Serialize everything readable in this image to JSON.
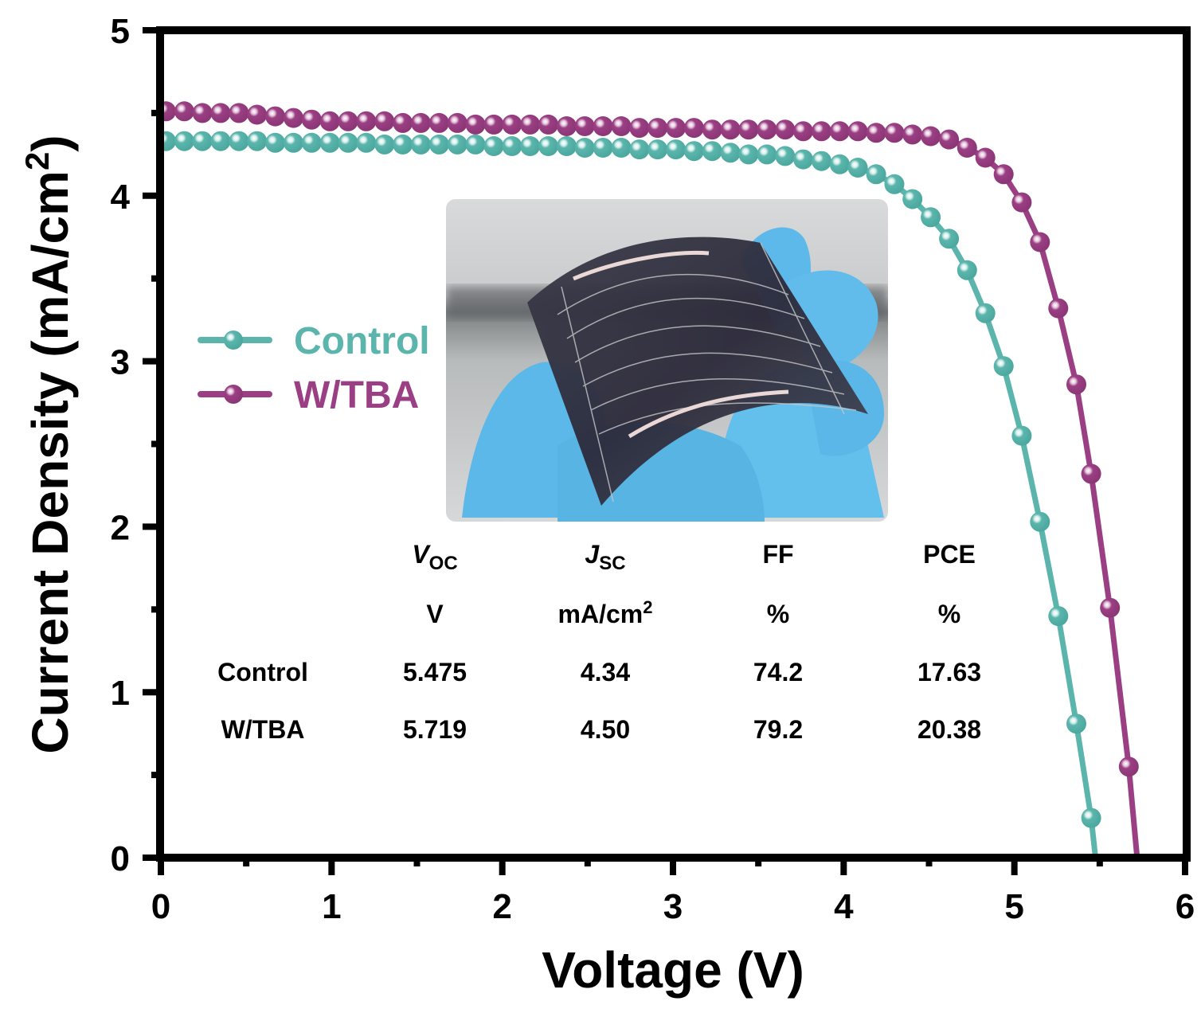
{
  "chart_data": {
    "type": "line",
    "title": "",
    "xlabel": "Voltage (V)",
    "ylabel_main": "Current Density (mA/cm",
    "ylabel_sup": "2",
    "ylabel_close": ")",
    "xlim": [
      0,
      6
    ],
    "ylim": [
      0,
      5
    ],
    "x_ticks": [
      0,
      1,
      2,
      3,
      4,
      5,
      6
    ],
    "y_ticks": [
      0,
      1,
      2,
      3,
      4,
      5
    ],
    "x_tick_labels": [
      "0",
      "1",
      "2",
      "3",
      "4",
      "5",
      "6"
    ],
    "y_tick_labels": [
      "0",
      "1",
      "2",
      "3",
      "4",
      "5"
    ],
    "grid": false,
    "legend_position": "center-left",
    "series": [
      {
        "name": "Control",
        "color": "#5BB5AC",
        "marker": "sphere",
        "points": [
          [
            0.03,
            4.33
          ],
          [
            0.137,
            4.33
          ],
          [
            0.243,
            4.33
          ],
          [
            0.35,
            4.33
          ],
          [
            0.457,
            4.33
          ],
          [
            0.563,
            4.33
          ],
          [
            0.67,
            4.32
          ],
          [
            0.777,
            4.32
          ],
          [
            0.883,
            4.32
          ],
          [
            0.99,
            4.32
          ],
          [
            1.097,
            4.32
          ],
          [
            1.203,
            4.32
          ],
          [
            1.31,
            4.31
          ],
          [
            1.417,
            4.31
          ],
          [
            1.523,
            4.31
          ],
          [
            1.63,
            4.31
          ],
          [
            1.737,
            4.31
          ],
          [
            1.843,
            4.31
          ],
          [
            1.95,
            4.3
          ],
          [
            2.057,
            4.3
          ],
          [
            2.163,
            4.3
          ],
          [
            2.27,
            4.3
          ],
          [
            2.377,
            4.3
          ],
          [
            2.483,
            4.29
          ],
          [
            2.59,
            4.29
          ],
          [
            2.697,
            4.29
          ],
          [
            2.803,
            4.28
          ],
          [
            2.91,
            4.28
          ],
          [
            3.017,
            4.28
          ],
          [
            3.123,
            4.27
          ],
          [
            3.23,
            4.27
          ],
          [
            3.337,
            4.26
          ],
          [
            3.443,
            4.25
          ],
          [
            3.55,
            4.25
          ],
          [
            3.657,
            4.24
          ],
          [
            3.763,
            4.22
          ],
          [
            3.87,
            4.21
          ],
          [
            3.977,
            4.19
          ],
          [
            4.083,
            4.17
          ],
          [
            4.19,
            4.13
          ],
          [
            4.297,
            4.07
          ],
          [
            4.403,
            3.98
          ],
          [
            4.51,
            3.87
          ],
          [
            4.617,
            3.74
          ],
          [
            4.723,
            3.55
          ],
          [
            4.83,
            3.29
          ],
          [
            4.937,
            2.97
          ],
          [
            5.043,
            2.55
          ],
          [
            5.15,
            2.03
          ],
          [
            5.257,
            1.46
          ],
          [
            5.363,
            0.81
          ],
          [
            5.45,
            0.24
          ]
        ],
        "line_end": [
          5.475,
          0
        ]
      },
      {
        "name": "W/TBA",
        "color": "#9A3F83",
        "marker": "sphere",
        "points": [
          [
            0.03,
            4.51
          ],
          [
            0.137,
            4.51
          ],
          [
            0.243,
            4.5
          ],
          [
            0.35,
            4.5
          ],
          [
            0.457,
            4.5
          ],
          [
            0.563,
            4.49
          ],
          [
            0.67,
            4.48
          ],
          [
            0.777,
            4.47
          ],
          [
            0.883,
            4.46
          ],
          [
            0.99,
            4.45
          ],
          [
            1.097,
            4.45
          ],
          [
            1.203,
            4.45
          ],
          [
            1.31,
            4.45
          ],
          [
            1.417,
            4.44
          ],
          [
            1.523,
            4.44
          ],
          [
            1.63,
            4.44
          ],
          [
            1.737,
            4.44
          ],
          [
            1.843,
            4.43
          ],
          [
            1.95,
            4.43
          ],
          [
            2.057,
            4.43
          ],
          [
            2.163,
            4.43
          ],
          [
            2.27,
            4.43
          ],
          [
            2.377,
            4.42
          ],
          [
            2.483,
            4.42
          ],
          [
            2.59,
            4.42
          ],
          [
            2.697,
            4.42
          ],
          [
            2.803,
            4.41
          ],
          [
            2.91,
            4.41
          ],
          [
            3.017,
            4.41
          ],
          [
            3.123,
            4.41
          ],
          [
            3.23,
            4.4
          ],
          [
            3.337,
            4.4
          ],
          [
            3.443,
            4.4
          ],
          [
            3.55,
            4.4
          ],
          [
            3.657,
            4.4
          ],
          [
            3.763,
            4.39
          ],
          [
            3.87,
            4.39
          ],
          [
            3.977,
            4.39
          ],
          [
            4.083,
            4.39
          ],
          [
            4.19,
            4.38
          ],
          [
            4.297,
            4.38
          ],
          [
            4.403,
            4.37
          ],
          [
            4.51,
            4.36
          ],
          [
            4.617,
            4.34
          ],
          [
            4.723,
            4.29
          ],
          [
            4.83,
            4.23
          ],
          [
            4.937,
            4.13
          ],
          [
            5.043,
            3.96
          ],
          [
            5.15,
            3.72
          ],
          [
            5.257,
            3.32
          ],
          [
            5.363,
            2.86
          ],
          [
            5.45,
            2.32
          ],
          [
            5.56,
            1.51
          ],
          [
            5.67,
            0.55
          ]
        ],
        "line_end": [
          5.719,
          0
        ]
      }
    ],
    "inset_table": {
      "headers": [
        {
          "main": "V",
          "sub": "OC",
          "italic": true
        },
        {
          "main": "J",
          "sub": "SC",
          "italic": true
        },
        {
          "main": "FF",
          "sub": "",
          "italic": false
        },
        {
          "main": "PCE",
          "sub": "",
          "italic": false
        }
      ],
      "units": [
        {
          "main": "V",
          "sup": ""
        },
        {
          "main": "mA/cm",
          "sup": "2"
        },
        {
          "main": "%",
          "sup": ""
        },
        {
          "main": "%",
          "sup": ""
        }
      ],
      "rows": [
        {
          "label": "Control",
          "values": [
            "5.475",
            "4.34",
            "74.2",
            "17.63"
          ]
        },
        {
          "label": "W/TBA",
          "values": [
            "5.719",
            "4.50",
            "79.2",
            "20.38"
          ]
        }
      ]
    },
    "inset_photo": "flexible-solar-cell-photo"
  }
}
